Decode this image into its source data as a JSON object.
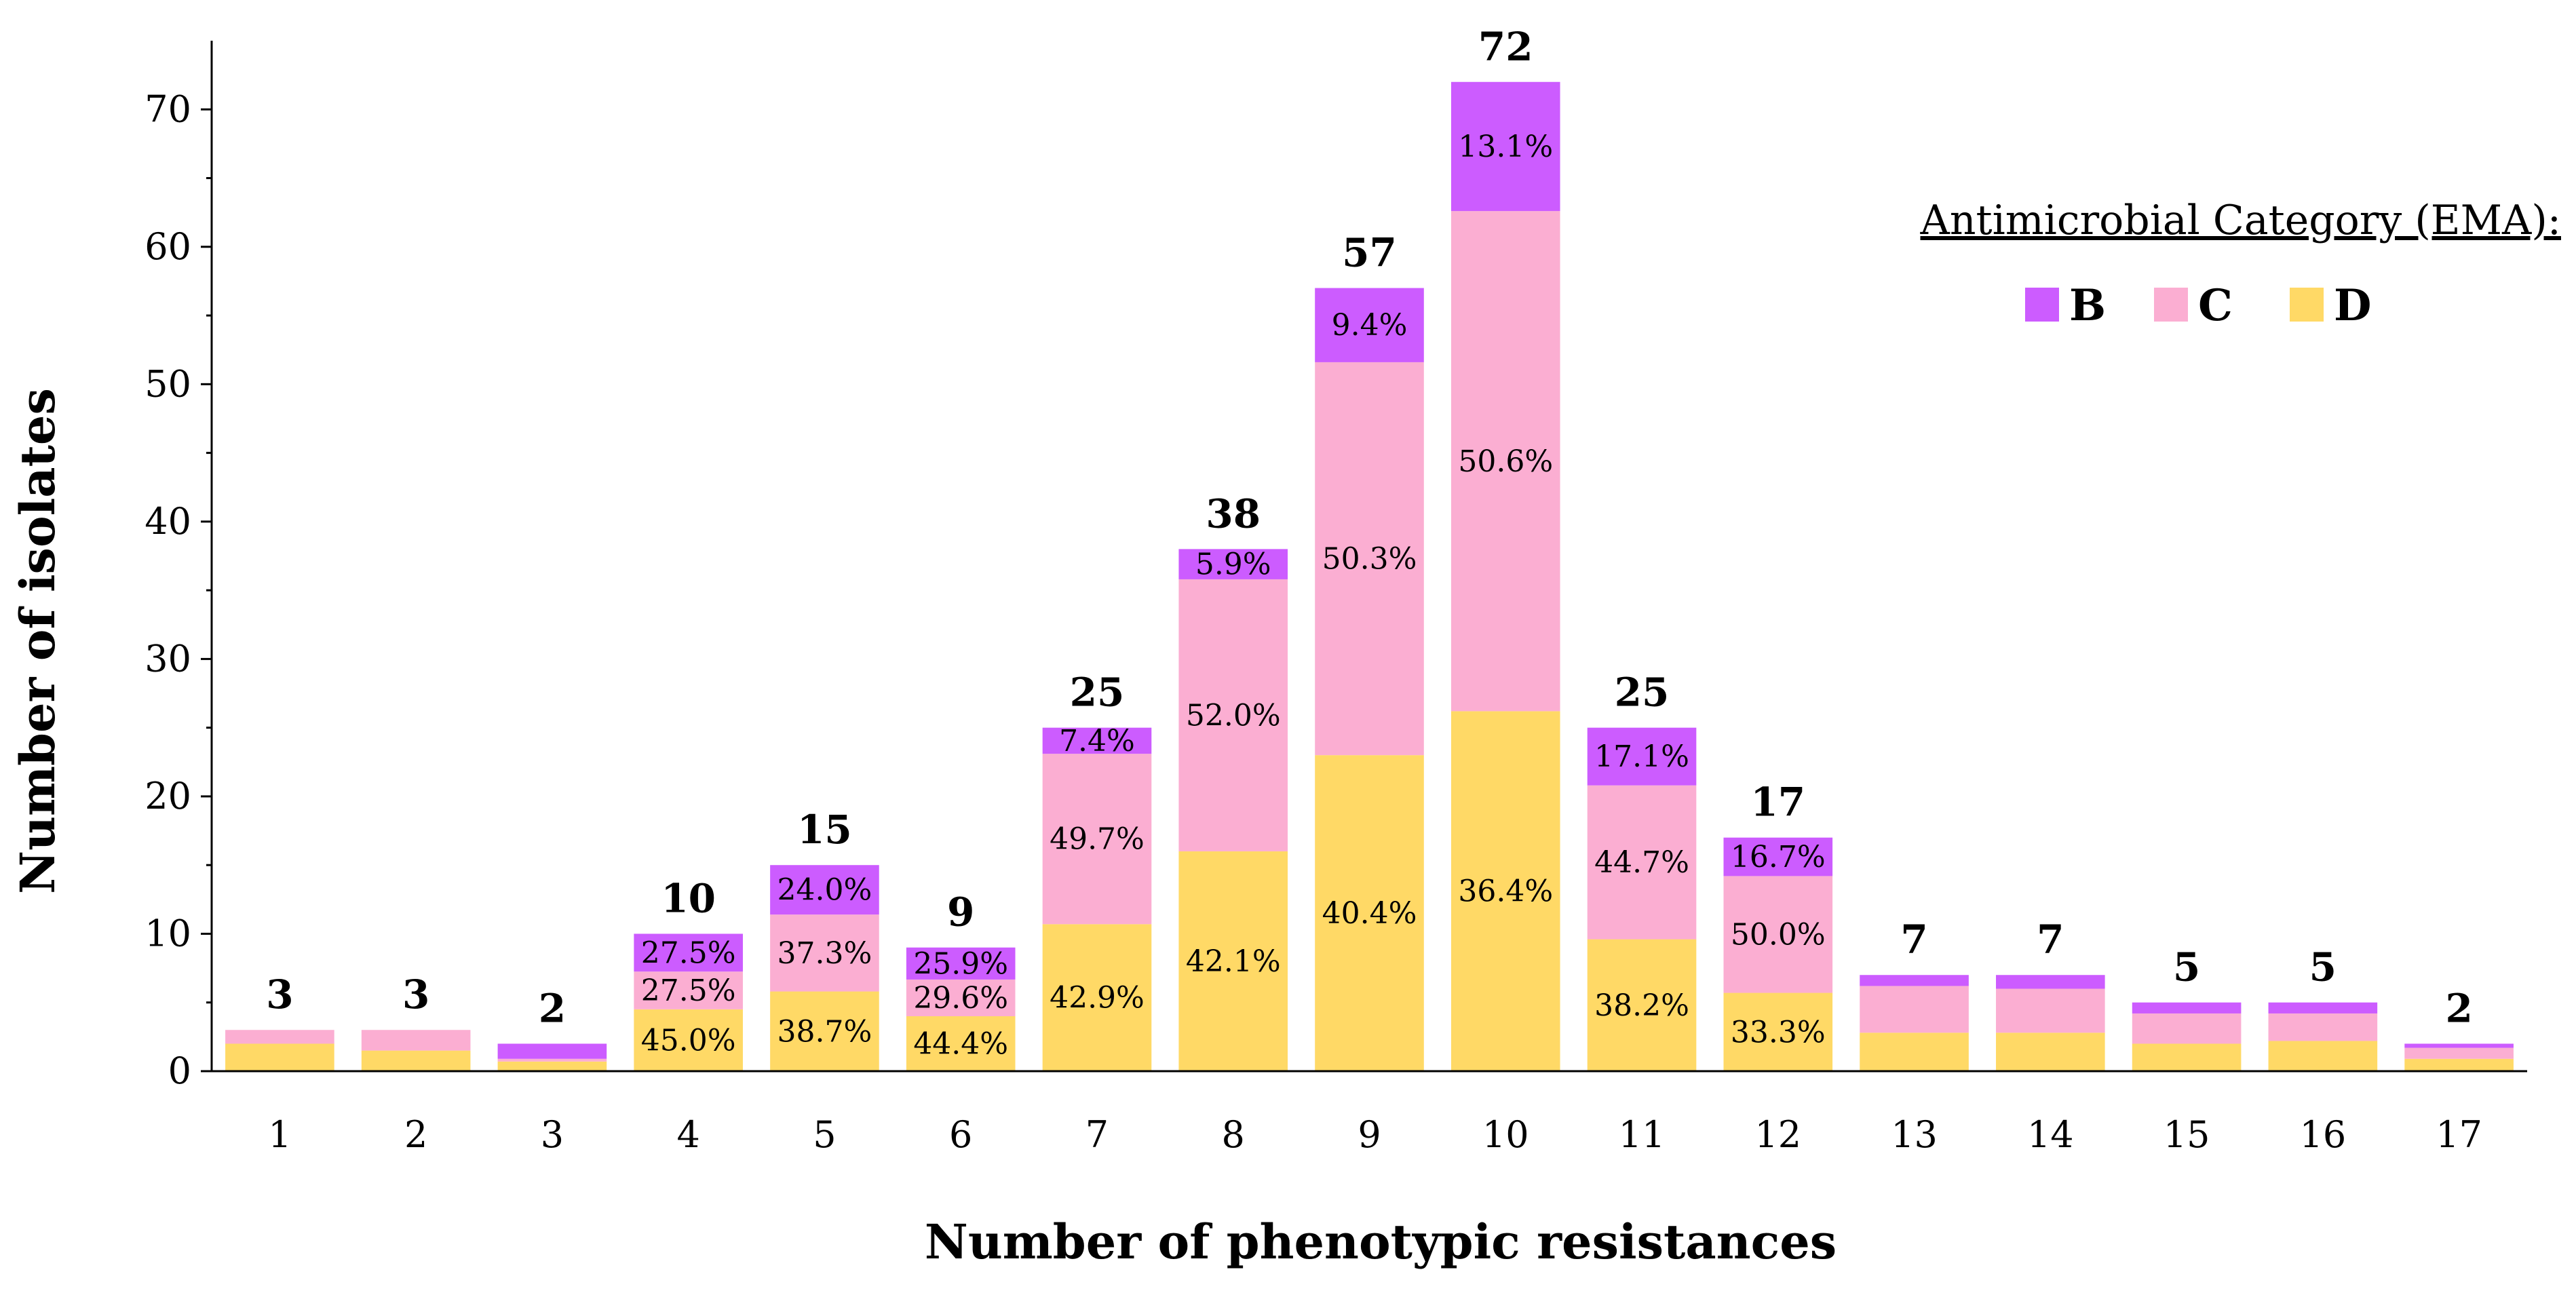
{
  "chart_data": {
    "type": "bar",
    "stacked": true,
    "xlabel": "Number of phenotypic resistances",
    "ylabel": "Number of isolates",
    "ylim": [
      0,
      75
    ],
    "yticks": [
      0,
      10,
      20,
      30,
      40,
      50,
      60,
      70
    ],
    "grid": false,
    "categories": [
      "1",
      "2",
      "3",
      "4",
      "5",
      "6",
      "7",
      "8",
      "9",
      "10",
      "11",
      "12",
      "13",
      "14",
      "15",
      "16",
      "17"
    ],
    "totals": [
      3,
      3,
      2,
      10,
      15,
      9,
      25,
      38,
      57,
      72,
      25,
      17,
      7,
      7,
      5,
      5,
      2
    ],
    "total_labels": [
      "3",
      "3",
      "2",
      "10",
      "15",
      "9",
      "25",
      "38",
      "57",
      "72",
      "25",
      "17",
      "7",
      "7",
      "5",
      "5",
      "2"
    ],
    "series": [
      {
        "name": "D",
        "color": "#FFD966",
        "values": [
          2.0,
          1.5,
          0.7,
          4.5,
          5.8,
          4.0,
          10.7,
          16.0,
          23.0,
          26.2,
          9.6,
          5.7,
          2.8,
          2.8,
          2.0,
          2.2,
          0.9
        ],
        "labels": [
          "",
          "",
          "",
          "45.0%",
          "38.7%",
          "44.4%",
          "42.9%",
          "42.1%",
          "40.4%",
          "36.4%",
          "38.2%",
          "33.3%",
          "",
          "",
          "",
          "",
          ""
        ]
      },
      {
        "name": "C",
        "color": "#FBAED2",
        "values": [
          1.0,
          1.5,
          0.2,
          2.75,
          5.6,
          2.67,
          12.4,
          19.8,
          28.6,
          36.4,
          11.2,
          8.5,
          3.4,
          3.2,
          2.2,
          2.0,
          0.8
        ],
        "labels": [
          "",
          "",
          "",
          "27.5%",
          "37.3%",
          "29.6%",
          "49.7%",
          "52.0%",
          "50.3%",
          "50.6%",
          "44.7%",
          "50.0%",
          "",
          "",
          "",
          "",
          ""
        ]
      },
      {
        "name": "B",
        "color": "#CC5CFF",
        "values": [
          0.0,
          0.0,
          1.1,
          2.75,
          3.6,
          2.33,
          1.9,
          2.2,
          5.4,
          9.4,
          4.2,
          2.8,
          0.8,
          1.0,
          0.8,
          0.8,
          0.3
        ],
        "labels": [
          "",
          "",
          "",
          "27.5%",
          "24.0%",
          "25.9%",
          "7.4%",
          "5.9%",
          "9.4%",
          "13.1%",
          "17.1%",
          "16.7%",
          "",
          "",
          "",
          "",
          ""
        ]
      }
    ],
    "legend": {
      "title": "Antimicrobial Category (EMA):",
      "entries": [
        "B",
        "C",
        "D"
      ],
      "position": "top-right"
    }
  }
}
